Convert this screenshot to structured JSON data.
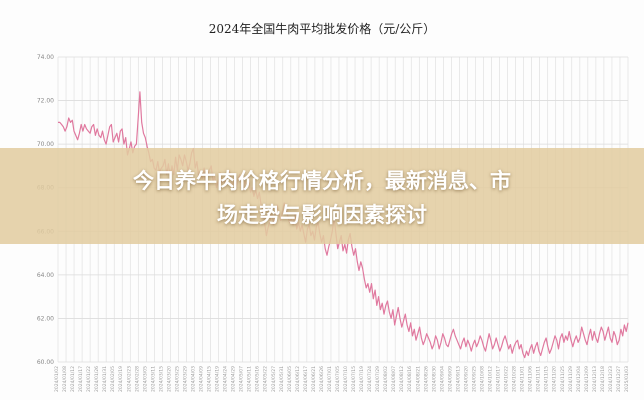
{
  "banner": {
    "headline_line1": "今日养牛肉价格行情分析，最新消息、市",
    "headline_line2": "场走势与影响因素探讨"
  },
  "colors": {
    "series": "#e0799f",
    "grid": "#dcdcdc",
    "banner_bg": "#e2cca0",
    "banner_text": "#ffffff"
  },
  "chart_data": {
    "type": "line",
    "title": "2024年全国牛肉平均批发价格（元/公斤）",
    "xlabel": "",
    "ylabel": "",
    "ylim": [
      60,
      74
    ],
    "yticks": [
      "74.00",
      "72.00",
      "70.00",
      "68.00",
      "66.00",
      "64.00",
      "62.00",
      "60.00"
    ],
    "grid": true,
    "x_tick_labels": [
      "2024/01/02",
      "2024/01/08",
      "2024/01/12",
      "2024/01/17",
      "2024/01/22",
      "2024/01/26",
      "2024/01/31",
      "2024/02/05",
      "2024/02/19",
      "2024/02/23",
      "2024/02/28",
      "2024/03/05",
      "2024/03/11",
      "2024/03/15",
      "2024/03/20",
      "2024/03/25",
      "2024/03/29",
      "2024/04/03",
      "2024/04/09",
      "2024/04/15",
      "2024/04/19",
      "2024/04/24",
      "2024/04/29",
      "2024/05/07",
      "2024/05/11",
      "2024/05/16",
      "2024/05/22",
      "2024/05/27",
      "2024/05/31",
      "2024/06/05",
      "2024/06/12",
      "2024/06/17",
      "2024/06/21",
      "2024/06/26",
      "2024/07/01",
      "2024/07/05",
      "2024/07/10",
      "2024/07/15",
      "2024/07/19",
      "2024/07/24",
      "2024/07/29",
      "2024/08/02",
      "2024/08/07",
      "2024/08/12",
      "2024/08/16",
      "2024/08/21",
      "2024/08/26",
      "2024/08/30",
      "2024/09/04",
      "2024/09/09",
      "2024/09/13",
      "2024/09/20",
      "2024/09/25",
      "2024/10/08",
      "2024/10/12",
      "2024/10/17",
      "2024/10/22",
      "2024/10/28",
      "2024/11/01",
      "2024/11/06",
      "2024/11/11",
      "2024/11/15",
      "2024/11/20",
      "2024/11/25",
      "2024/11/29",
      "2024/12/04",
      "2024/12/09",
      "2024/12/13",
      "2024/12/18",
      "2024/12/23",
      "2024/12/27",
      "2025/01/03"
    ],
    "series": [
      {
        "values": [
          71.0,
          71.0,
          70.9,
          70.8,
          70.6,
          70.8,
          71.2,
          71.0,
          71.1,
          70.6,
          70.4,
          70.2,
          70.5,
          70.9,
          70.6,
          70.9,
          70.7,
          70.6,
          70.5,
          70.8,
          70.9,
          70.4,
          70.7,
          70.4,
          70.3,
          70.6,
          70.2,
          70.0,
          70.4,
          70.8,
          70.9,
          70.1,
          70.3,
          70.5,
          70.1,
          70.6,
          70.7,
          70.0,
          70.3,
          69.5,
          69.8,
          70.1,
          69.6,
          69.9,
          70.0,
          71.2,
          72.4,
          71.0,
          70.5,
          70.3,
          69.9,
          69.6,
          69.2,
          69.3,
          68.9,
          68.8,
          69.2,
          68.7,
          68.9,
          69.0,
          69.3,
          68.6,
          69.1,
          68.5,
          69.0,
          68.6,
          69.4,
          68.8,
          69.5,
          69.3,
          69.0,
          69.5,
          69.2,
          68.8,
          69.1,
          69.6,
          69.8,
          68.9,
          69.2,
          68.5,
          68.8,
          68.4,
          68.9,
          68.2,
          68.6,
          68.8,
          69.0,
          68.3,
          68.5,
          68.0,
          68.3,
          68.7,
          68.2,
          68.4,
          68.1,
          68.6,
          68.8,
          68.5,
          68.1,
          68.3,
          68.0,
          68.4,
          68.6,
          68.2,
          67.9,
          68.3,
          68.1,
          68.5,
          67.8,
          68.0,
          67.6,
          67.9,
          67.5,
          67.8,
          67.2,
          67.0,
          66.4,
          65.8,
          66.2,
          66.5,
          66.8,
          66.3,
          66.9,
          67.2,
          66.8,
          66.5,
          66.9,
          67.3,
          67.0,
          66.7,
          66.4,
          66.6,
          66.3,
          66.8,
          66.1,
          66.4,
          66.0,
          66.3,
          65.9,
          65.5,
          66.1,
          66.3,
          65.8,
          66.0,
          65.6,
          66.2,
          66.4,
          65.9,
          65.5,
          65.8,
          65.2,
          64.9,
          65.3,
          65.6,
          66.0,
          66.6,
          65.9,
          65.2,
          65.5,
          65.8,
          65.1,
          65.4,
          65.0,
          65.6,
          65.9,
          65.3,
          64.9,
          65.2,
          64.6,
          64.2,
          64.6,
          64.3,
          63.8,
          63.4,
          63.6,
          63.2,
          63.6,
          62.9,
          63.3,
          62.6,
          63.0,
          62.4,
          62.7,
          62.2,
          62.6,
          62.8,
          62.3,
          62.0,
          62.4,
          61.7,
          62.1,
          62.5,
          62.0,
          61.6,
          61.9,
          62.2,
          61.7,
          61.4,
          61.8,
          61.2,
          61.5,
          61.0,
          61.3,
          61.6,
          61.1,
          60.8,
          61.0,
          61.3,
          61.1,
          60.9,
          60.6,
          60.8,
          61.2,
          61.0,
          60.6,
          60.9,
          61.3,
          61.1,
          60.8,
          60.7,
          61.0,
          61.3,
          61.5,
          61.2,
          61.0,
          60.8,
          60.6,
          60.9,
          61.1,
          60.7,
          61.0,
          60.8,
          60.5,
          60.8,
          61.0,
          60.7,
          60.9,
          61.2,
          61.0,
          60.7,
          60.5,
          60.9,
          61.3,
          61.0,
          60.6,
          60.8,
          61.1,
          60.8,
          60.5,
          60.7,
          61.0,
          61.2,
          60.9,
          60.6,
          60.8,
          60.4,
          60.7,
          60.9,
          61.0,
          60.6,
          60.8,
          60.4,
          60.2,
          60.5,
          60.3,
          60.6,
          60.8,
          60.4,
          60.7,
          60.9,
          60.5,
          60.3,
          60.6,
          60.9,
          61.1,
          60.7,
          60.4,
          60.6,
          60.9,
          61.2,
          61.0,
          60.6,
          61.1,
          61.3,
          60.9,
          61.2,
          61.0,
          61.4,
          61.0,
          60.7,
          61.0,
          61.2,
          60.9,
          61.1,
          61.6,
          61.3,
          61.0,
          60.8,
          61.2,
          61.5,
          61.0,
          61.4,
          61.1,
          60.9,
          61.3,
          61.6,
          61.4,
          61.0,
          61.3,
          61.6,
          61.1,
          60.9,
          61.4,
          61.2,
          60.8,
          61.0,
          61.5,
          61.2,
          61.7,
          61.4,
          61.8
        ]
      }
    ]
  }
}
